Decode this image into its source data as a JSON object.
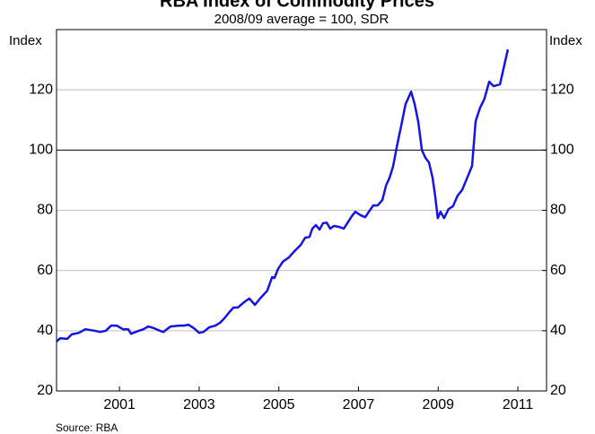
{
  "chart_data": {
    "type": "line",
    "title": "RBA Index of Commodity Prices",
    "subtitle": "2008/09 average = 100, SDR",
    "y_label": "Index",
    "y2_label": "Index",
    "source": "Source: RBA",
    "x": [
      1999.42,
      1999.51,
      1999.69,
      1999.8,
      1999.98,
      2000.14,
      2000.37,
      2000.52,
      2000.66,
      2000.79,
      2000.93,
      2001.09,
      2001.22,
      2001.29,
      2001.49,
      2001.6,
      2001.72,
      2001.87,
      2002.01,
      2002.1,
      2002.28,
      2002.51,
      2002.62,
      2002.73,
      2002.87,
      2003.0,
      2003.11,
      2003.25,
      2003.41,
      2003.52,
      2003.63,
      2003.74,
      2003.86,
      2003.97,
      2004.13,
      2004.26,
      2004.4,
      2004.53,
      2004.71,
      2004.83,
      2004.89,
      2004.98,
      2005.1,
      2005.25,
      2005.39,
      2005.55,
      2005.66,
      2005.77,
      2005.84,
      2005.93,
      2006.02,
      2006.11,
      2006.2,
      2006.29,
      2006.38,
      2006.51,
      2006.63,
      2006.72,
      2006.83,
      2006.92,
      2007.06,
      2007.17,
      2007.26,
      2007.37,
      2007.48,
      2007.6,
      2007.69,
      2007.78,
      2007.87,
      2007.96,
      2008.07,
      2008.18,
      2008.32,
      2008.41,
      2008.5,
      2008.59,
      2008.68,
      2008.77,
      2008.86,
      2008.92,
      2008.99,
      2009.06,
      2009.15,
      2009.26,
      2009.37,
      2009.49,
      2009.6,
      2009.71,
      2009.85,
      2009.94,
      2010.05,
      2010.16,
      2010.28,
      2010.39,
      2010.55,
      2010.75
    ],
    "series": [
      {
        "name": "RBA Index of Commodity Prices",
        "color": "#1414e6",
        "values": [
          36.4,
          37.5,
          37.3,
          38.8,
          39.3,
          40.5,
          40,
          39.6,
          40,
          41.7,
          41.7,
          40.5,
          40.5,
          39,
          40,
          40.5,
          41.4,
          40.8,
          40,
          39.6,
          41.4,
          41.7,
          41.7,
          42,
          40.8,
          39.3,
          39.6,
          41.1,
          41.7,
          42.6,
          44.1,
          45.9,
          47.7,
          47.7,
          49.5,
          50.7,
          48.6,
          50.7,
          53.3,
          57.8,
          57.5,
          60.5,
          62.9,
          64.3,
          66.4,
          68.5,
          70.9,
          71.2,
          73.9,
          75.1,
          73.6,
          75.7,
          75.9,
          73.9,
          74.8,
          74.5,
          73.9,
          75.7,
          78,
          79.5,
          78.3,
          77.7,
          79.5,
          81.6,
          81.6,
          83.4,
          88.2,
          90.8,
          94.7,
          101,
          108,
          115.2,
          119.4,
          115.2,
          109.3,
          100,
          97.4,
          95.9,
          90.8,
          85.2,
          77.4,
          79.5,
          77.4,
          80.4,
          81.3,
          84.9,
          86.7,
          90.2,
          94.7,
          109.6,
          114,
          117,
          122.7,
          121.2,
          121.8,
          133.4
        ]
      }
    ],
    "xlim": [
      1999.42,
      2011.72
    ],
    "xticks": [
      2001,
      2003,
      2005,
      2007,
      2009,
      2011
    ],
    "ylim": [
      20,
      140
    ],
    "yticks": [
      20,
      40,
      60,
      80,
      100,
      120
    ],
    "y2lim": [
      20,
      140
    ],
    "y2ticks": [
      20,
      40,
      60,
      80,
      100,
      120
    ],
    "reference_line": 100,
    "grid": true
  }
}
